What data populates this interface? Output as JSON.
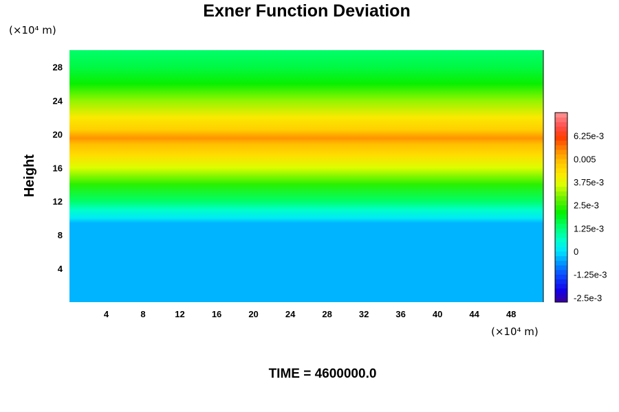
{
  "chart_data": {
    "type": "heatmap",
    "title": "Exner Function Deviation",
    "ylabel": "Height",
    "x_unit": "(×10⁴ m)",
    "y_unit": "(×10⁴ m)",
    "xlim": [
      0,
      51.5
    ],
    "ylim": [
      0,
      30
    ],
    "x_ticks": [
      4,
      8,
      12,
      16,
      20,
      24,
      28,
      32,
      36,
      40,
      44,
      48
    ],
    "y_ticks": [
      4,
      8,
      12,
      16,
      20,
      24,
      28
    ],
    "field_profile": [
      {
        "height": 0,
        "value": -0.0003
      },
      {
        "height": 9.4,
        "value": -0.0003
      },
      {
        "height": 10.0,
        "value": 0.0001
      },
      {
        "height": 11.0,
        "value": 0.0006
      },
      {
        "height": 12.0,
        "value": 0.0013
      },
      {
        "height": 14.0,
        "value": 0.0025
      },
      {
        "height": 16.0,
        "value": 0.0037
      },
      {
        "height": 17.5,
        "value": 0.0043
      },
      {
        "height": 18.8,
        "value": 0.0048
      },
      {
        "height": 19.5,
        "value": 0.0053
      },
      {
        "height": 20.5,
        "value": 0.0047
      },
      {
        "height": 22.0,
        "value": 0.004
      },
      {
        "height": 24.0,
        "value": 0.003
      },
      {
        "height": 26.0,
        "value": 0.0022
      },
      {
        "height": 28.0,
        "value": 0.0016
      },
      {
        "height": 30.0,
        "value": 0.0013
      }
    ],
    "colorbar": {
      "min": -0.00275,
      "max": 0.0075,
      "step": 0.00025,
      "tick_values": [
        -0.0025,
        -0.00125,
        0,
        0.00125,
        0.0025,
        0.00375,
        0.005,
        0.00625
      ],
      "tick_labels": [
        "-2.5e-3",
        "-1.25e-3",
        "0",
        "1.25e-3",
        "2.5e-3",
        "3.75e-3",
        "0.005",
        "6.25e-3"
      ]
    }
  },
  "footer": {
    "time_label": "TIME = 4600000.0"
  }
}
